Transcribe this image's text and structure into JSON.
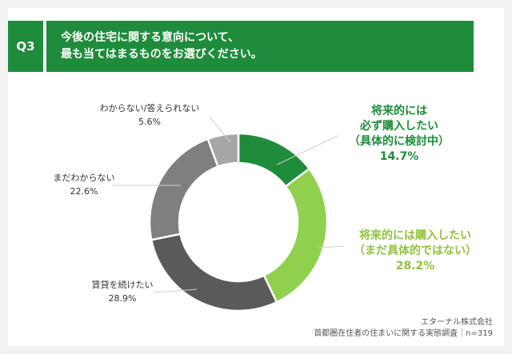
{
  "header": {
    "q_label": "Q3",
    "title_line1": "今後の住宅に関する意向について、",
    "title_line2": "最も当てはまるものをお選びください。"
  },
  "chart_data": {
    "type": "pie",
    "donut": true,
    "series": [
      {
        "name": "将来的には必ず購入したい（具体的に検討中）",
        "value": 14.7,
        "color": "#1e8c3a"
      },
      {
        "name": "将来的には購入したい（まだ具体的ではない）",
        "value": 28.2,
        "color": "#8fd14f"
      },
      {
        "name": "賃貸を続けたい",
        "value": 28.9,
        "color": "#5a5a5a"
      },
      {
        "name": "まだわからない",
        "value": 22.6,
        "color": "#7f7f7f"
      },
      {
        "name": "わからない/答えられない",
        "value": 5.6,
        "color": "#a6a6a6"
      }
    ]
  },
  "labels": {
    "s0": {
      "line1": "将来的には",
      "line2": "必ず購入したい",
      "line3": "（具体的に検討中）",
      "pct": "14.7%"
    },
    "s1": {
      "line1": "将来的には購入したい",
      "line2": "（まだ具体的ではない）",
      "pct": "28.2%"
    },
    "s2": {
      "line1": "賃貸を続けたい",
      "pct": "28.9%"
    },
    "s3": {
      "line1": "まだわからない",
      "pct": "22.6%"
    },
    "s4": {
      "line1": "わからない/答えられない",
      "pct": "5.6%"
    }
  },
  "footer": {
    "company": "エターナル株式会社",
    "survey": "首都圏在住者の住まいに関する実態調査｜n=319"
  }
}
